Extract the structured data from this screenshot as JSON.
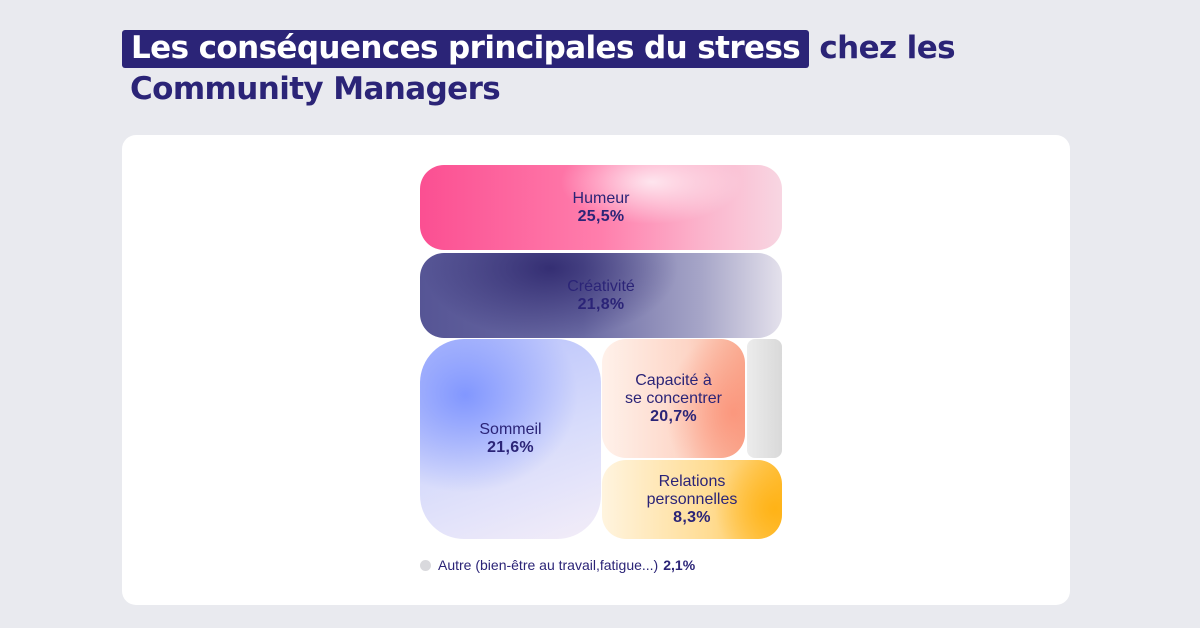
{
  "title": {
    "highlight": "Les conséquences principales du stress",
    "rest": "chez les",
    "line2": "Community Managers"
  },
  "colors": {
    "title": "#2b2477",
    "humeur": "#fb4f92",
    "creativite": "#565595",
    "sommeil": "#8fa2fd",
    "concentrer": "#f9a68c",
    "relations": "#ffbf3a",
    "autre": "#d9d9dd"
  },
  "chart_data": {
    "type": "treemap",
    "title": "Les conséquences principales du stress chez les Community Managers",
    "unit": "%",
    "items": [
      {
        "label": "Humeur",
        "value": 25.5,
        "display": "25,5%"
      },
      {
        "label": "Créativité",
        "value": 21.8,
        "display": "21,8%"
      },
      {
        "label": "Sommeil",
        "value": 21.6,
        "display": "21,6%"
      },
      {
        "label": "Capacité à se concentrer",
        "value": 20.7,
        "display": "20,7%"
      },
      {
        "label": "Relations personnelles",
        "value": 8.3,
        "display": "8,3%"
      },
      {
        "label": "Autre (bien-être au travail,fatigue...)",
        "value": 2.1,
        "display": "2,1%"
      }
    ],
    "legend": {
      "label": "Autre (bien-être au travail,fatigue...)",
      "value": "2,1%",
      "placement": "bottom-left"
    }
  },
  "tiles": {
    "humeur": {
      "label": "Humeur",
      "value": "25,5%"
    },
    "creativite": {
      "label": "Créativité",
      "value": "21,8%"
    },
    "sommeil": {
      "label": "Sommeil",
      "value": "21,6%"
    },
    "concentrer": {
      "label_1": "Capacité à",
      "label_2": "se concentrer",
      "value": "20,7%"
    },
    "relations": {
      "label_1": "Relations",
      "label_2": "personnelles",
      "value": "8,3%"
    }
  }
}
